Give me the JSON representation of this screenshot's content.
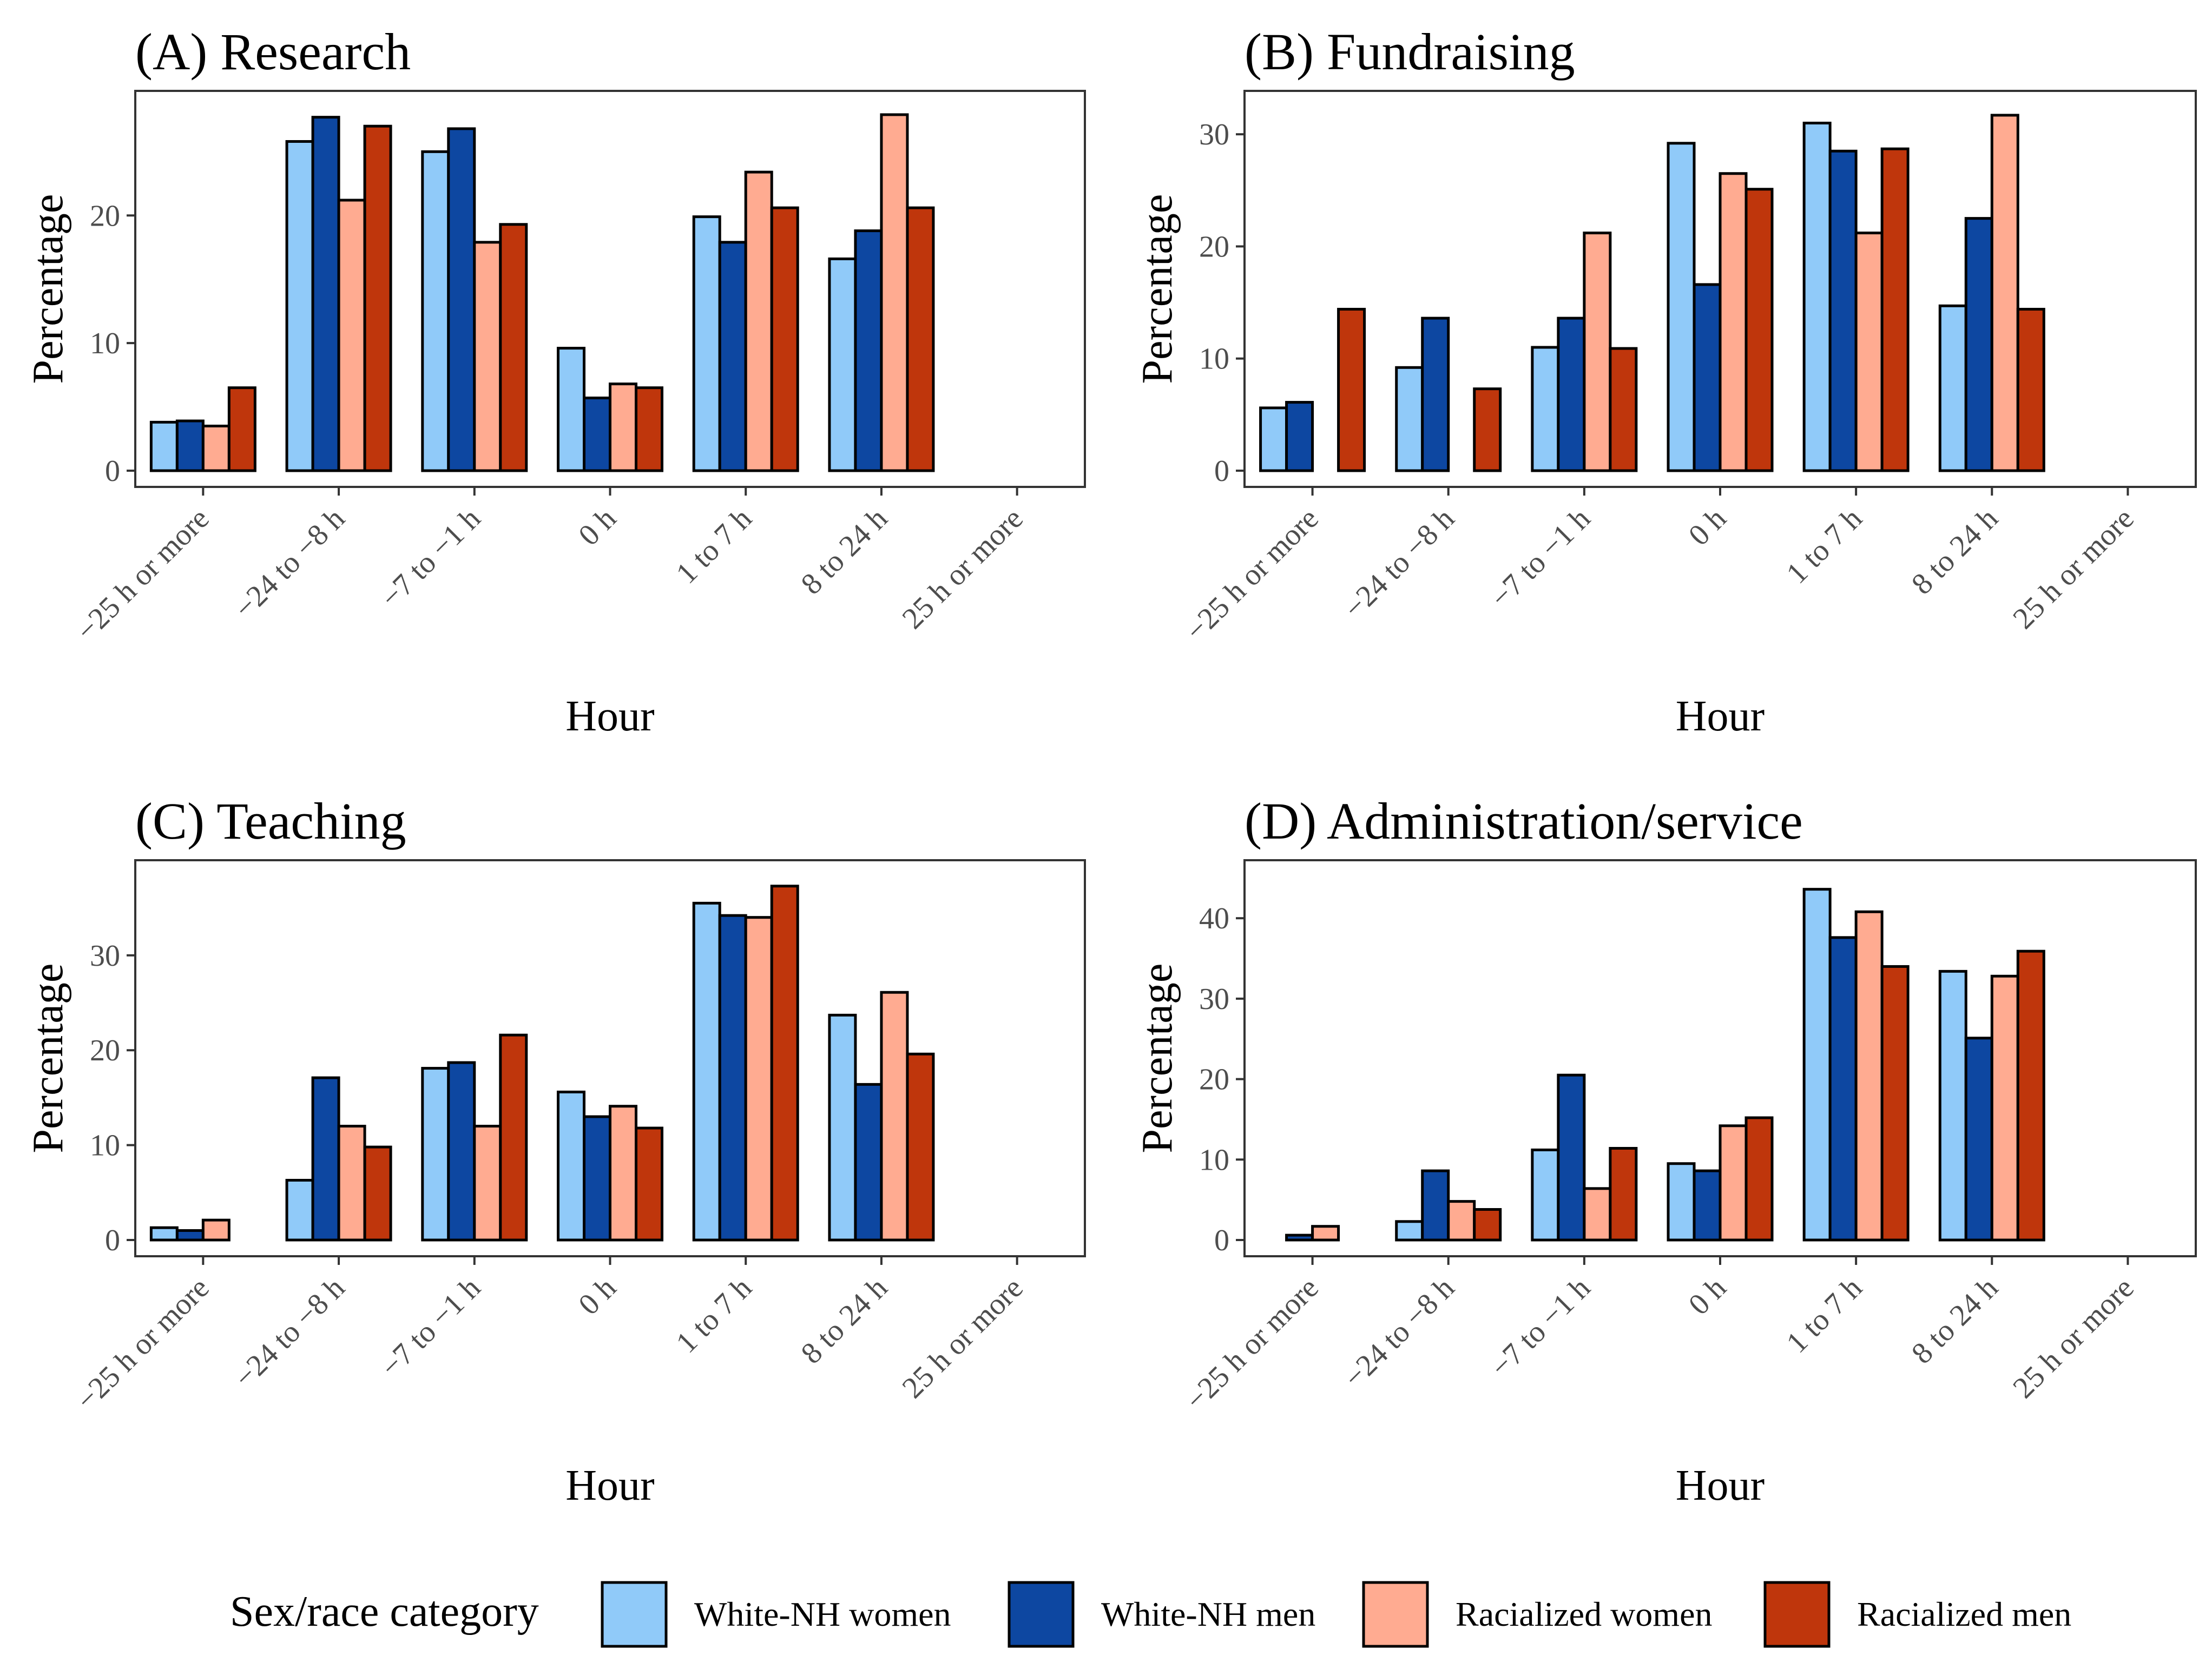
{
  "legend": {
    "title": "Sex/race category",
    "items": [
      {
        "label": "White-NH women",
        "color": "#90CAF9"
      },
      {
        "label": "White-NH men",
        "color": "#0D47A1"
      },
      {
        "label": "Racialized women",
        "color": "#FFAB91"
      },
      {
        "label": "Racialized men",
        "color": "#BF360C"
      }
    ]
  },
  "chart_data": [
    {
      "type": "bar",
      "title": "(A) Research",
      "xlabel": "Hour",
      "ylabel": "Percentage",
      "categories": [
        "−25 h or more",
        "−24 to −8 h",
        "−7 to −1 h",
        "0 h",
        "1 to 7 h",
        "8 to 24 h",
        "25 h or more"
      ],
      "ylim": [
        0,
        29
      ],
      "yticks": [
        0,
        10,
        20
      ],
      "series": [
        {
          "name": "White-NH women",
          "values": [
            3.8,
            25.8,
            25.0,
            9.6,
            19.9,
            16.6,
            0
          ]
        },
        {
          "name": "White-NH men",
          "values": [
            3.9,
            27.7,
            26.8,
            5.7,
            17.9,
            18.8,
            0
          ]
        },
        {
          "name": "Racialized women",
          "values": [
            3.5,
            21.2,
            17.9,
            6.8,
            23.4,
            27.9,
            0
          ]
        },
        {
          "name": "Racialized men",
          "values": [
            6.5,
            27.0,
            19.3,
            6.5,
            20.6,
            20.6,
            0
          ]
        }
      ]
    },
    {
      "type": "bar",
      "title": "(B) Fundraising",
      "xlabel": "Hour",
      "ylabel": "Percentage",
      "categories": [
        "−25 h or more",
        "−24 to −8 h",
        "−7 to −1 h",
        "0 h",
        "1 to 7 h",
        "8 to 24 h",
        "25 h or more"
      ],
      "ylim": [
        0,
        33
      ],
      "yticks": [
        0,
        10,
        20,
        30
      ],
      "series": [
        {
          "name": "White-NH women",
          "values": [
            5.6,
            9.2,
            11.0,
            29.2,
            31.0,
            14.7,
            0
          ]
        },
        {
          "name": "White-NH men",
          "values": [
            6.1,
            13.6,
            13.6,
            16.6,
            28.5,
            22.5,
            0
          ]
        },
        {
          "name": "Racialized women",
          "values": [
            0,
            0,
            21.2,
            26.5,
            21.2,
            31.7,
            0
          ]
        },
        {
          "name": "Racialized men",
          "values": [
            14.4,
            7.3,
            10.9,
            25.1,
            28.7,
            14.4,
            0
          ]
        }
      ]
    },
    {
      "type": "bar",
      "title": "(C) Teaching",
      "xlabel": "Hour",
      "ylabel": "Percentage",
      "categories": [
        "−25 h or more",
        "−24 to −8 h",
        "−7 to −1 h",
        "0 h",
        "1 to 7 h",
        "8 to 24 h",
        "25 h or more"
      ],
      "ylim": [
        0,
        39
      ],
      "yticks": [
        0,
        10,
        20,
        30
      ],
      "series": [
        {
          "name": "White-NH women",
          "values": [
            1.3,
            6.3,
            18.1,
            15.6,
            35.5,
            23.7,
            0
          ]
        },
        {
          "name": "White-NH men",
          "values": [
            1.0,
            17.1,
            18.7,
            13.0,
            34.2,
            16.4,
            0
          ]
        },
        {
          "name": "Racialized women",
          "values": [
            2.1,
            12.0,
            12.0,
            14.1,
            34.0,
            26.1,
            0
          ]
        },
        {
          "name": "Racialized men",
          "values": [
            0,
            9.8,
            21.6,
            11.8,
            37.3,
            19.6,
            0
          ]
        }
      ]
    },
    {
      "type": "bar",
      "title": "(D) Administration/service",
      "xlabel": "Hour",
      "ylabel": "Percentage",
      "categories": [
        "−25 h or more",
        "−24 to −8 h",
        "−7 to −1 h",
        "0 h",
        "1 to 7 h",
        "8 to 24 h",
        "25 h or more"
      ],
      "ylim": [
        0,
        46
      ],
      "yticks": [
        0,
        10,
        20,
        30,
        40
      ],
      "series": [
        {
          "name": "White-NH women",
          "values": [
            0,
            2.3,
            11.2,
            9.5,
            43.6,
            33.4,
            0
          ]
        },
        {
          "name": "White-NH men",
          "values": [
            0.6,
            8.6,
            20.5,
            8.6,
            37.6,
            25.1,
            0
          ]
        },
        {
          "name": "Racialized women",
          "values": [
            1.7,
            4.8,
            6.4,
            14.2,
            40.8,
            32.8,
            0
          ]
        },
        {
          "name": "Racialized men",
          "values": [
            0,
            3.8,
            11.4,
            15.2,
            34.0,
            35.9,
            0
          ]
        }
      ]
    }
  ]
}
